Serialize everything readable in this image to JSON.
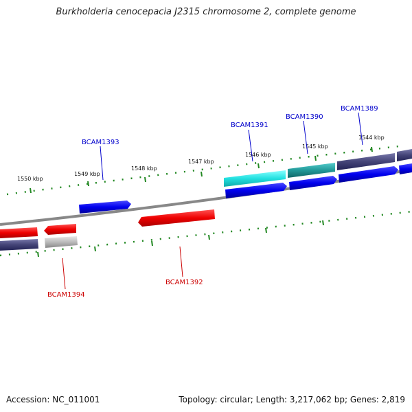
{
  "title": "Burkholderia cenocepacia J2315 chromosome 2, complete genome",
  "footer": {
    "accession": "Accession: NC_011001",
    "summary": "Topology: circular; Length: 3,217,062 bp; Genes: 2,819"
  },
  "scale_labels": [
    "1550 kbp",
    "1549 kbp",
    "1548 kbp",
    "1547 kbp",
    "1546 kbp",
    "1545 kbp",
    "1544 kbp"
  ],
  "gene_labels": [
    {
      "text": "BCAM1389",
      "color": "#0000cc"
    },
    {
      "text": "BCAM1390",
      "color": "#0000cc"
    },
    {
      "text": "BCAM1391",
      "color": "#0000cc"
    },
    {
      "text": "BCAM1393",
      "color": "#0000cc"
    },
    {
      "text": "BCAM1392",
      "color": "#cc0000"
    },
    {
      "text": "BCAM1394",
      "color": "#cc0000"
    }
  ],
  "colors": {
    "forward_cds": "#0000ee",
    "reverse_cds": "#ee0000",
    "backbone": "#888888",
    "cyan_feature": "#33dddd",
    "teal_feature": "#22aaaa",
    "slate_feature": "#444488",
    "grey_feature": "#bbbbbb",
    "tick": "#228822"
  }
}
